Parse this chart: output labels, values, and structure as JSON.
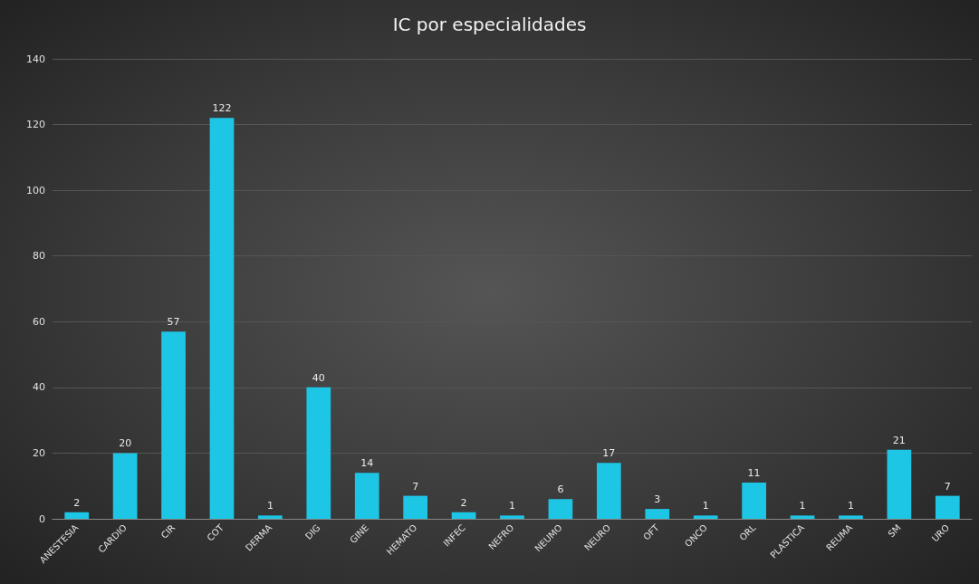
{
  "chart_data": {
    "type": "bar",
    "title": "IC por especialidades",
    "categories": [
      "ANESTESIA",
      "CARDIO",
      "CIR",
      "COT",
      "DERMA",
      "DIG",
      "GINE",
      "HEMATO",
      "INFEC",
      "NEFRO",
      "NEUMO",
      "NEURO",
      "OFT",
      "ONCO",
      "ORL",
      "PLASTICA",
      "REUMA",
      "SM",
      "URO"
    ],
    "values": [
      2,
      20,
      57,
      122,
      1,
      40,
      14,
      7,
      2,
      1,
      6,
      17,
      3,
      1,
      11,
      1,
      1,
      21,
      7
    ],
    "color": "#1ec6e6",
    "ylim": [
      0,
      140
    ],
    "yticks": [
      0,
      20,
      40,
      60,
      80,
      100,
      120,
      140
    ],
    "grid": "y",
    "data_labels": true
  }
}
